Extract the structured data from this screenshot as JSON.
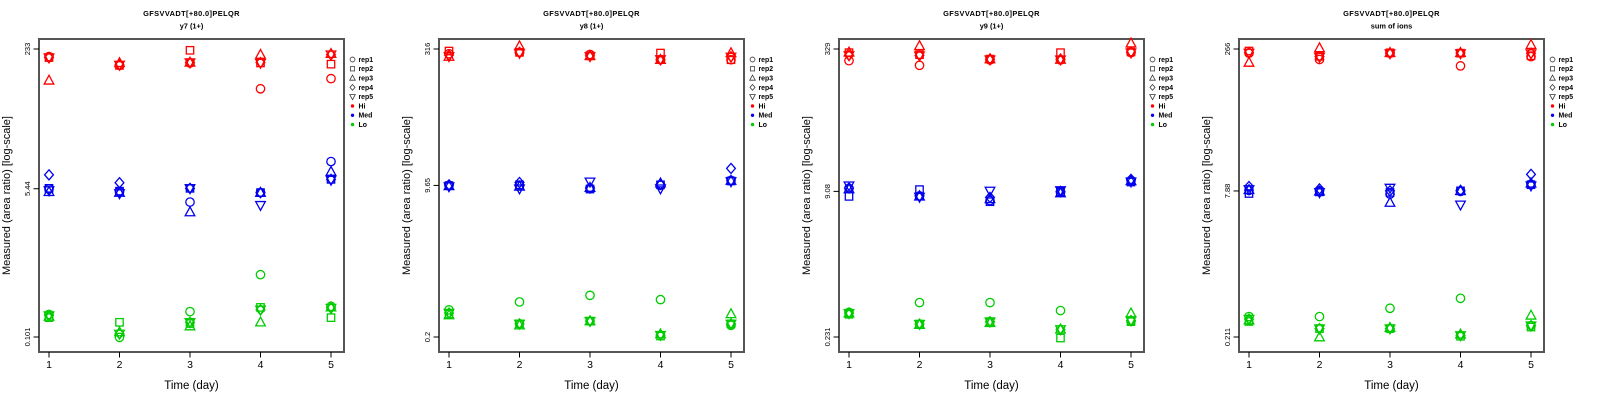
{
  "figure": {
    "ylabel": "Measured (area ratio) [log-scale]",
    "xlabel": "Time (day)",
    "title": "GFSVVADT[+80.0]PELQR"
  },
  "colors": {
    "hi": "#FF0000",
    "med": "#0000EE",
    "lo": "#00CC00",
    "frame": "#555555",
    "legend_symbol": "#333333",
    "text": "#000000"
  },
  "legend": {
    "reps": [
      {
        "label": "rep1",
        "marker": "circle"
      },
      {
        "label": "rep2",
        "marker": "square"
      },
      {
        "label": "rep3",
        "marker": "triangle-up"
      },
      {
        "label": "rep4",
        "marker": "diamond"
      },
      {
        "label": "rep5",
        "marker": "triangle-down"
      }
    ],
    "groups": [
      {
        "label": "Hi",
        "color": "#FF0000"
      },
      {
        "label": "Med",
        "color": "#0000EE"
      },
      {
        "label": "Lo",
        "color": "#00CC00"
      }
    ]
  },
  "chart_data": [
    {
      "type": "scatter",
      "title": "GFSVVADT[+80.0]PELQR",
      "subtitle": "y7 (1+)",
      "xlabel": "Time (day)",
      "ylabel": "Measured (area ratio) [log-scale]",
      "x_ticks": [
        1,
        2,
        3,
        4,
        5
      ],
      "x_tick_labels": [
        "1",
        "2",
        "3",
        "4",
        "5"
      ],
      "y_scale": "log",
      "y_tick_values": [
        233,
        5.44,
        0.101
      ],
      "y_tick_labels": [
        "233",
        "5.44",
        "0.101"
      ],
      "xlim": [
        0.5,
        5.5
      ],
      "ylim": [
        0.068,
        305
      ],
      "grid": false,
      "legend_position": "right-outside",
      "series": [
        {
          "group": "Hi",
          "rep": "rep1",
          "marker": "circle",
          "color": "#FF0000",
          "values": [
            190,
            150,
            160,
            80,
            105
          ]
        },
        {
          "group": "Hi",
          "rep": "rep2",
          "marker": "square",
          "color": "#FF0000",
          "values": [
            185,
            150,
            225,
            160,
            155
          ]
        },
        {
          "group": "Hi",
          "rep": "rep3",
          "marker": "triangle-up",
          "color": "#FF0000",
          "values": [
            100,
            160,
            162,
            200,
            205
          ]
        },
        {
          "group": "Hi",
          "rep": "rep4",
          "marker": "diamond",
          "color": "#FF0000",
          "values": [
            185,
            152,
            162,
            162,
            200
          ]
        },
        {
          "group": "Hi",
          "rep": "rep5",
          "marker": "triangle-down",
          "color": "#FF0000",
          "values": [
            185,
            152,
            162,
            160,
            200
          ]
        },
        {
          "group": "Med",
          "rep": "rep1",
          "marker": "circle",
          "color": "#0000EE",
          "values": [
            5.4,
            5.0,
            3.8,
            4.9,
            11.3
          ]
        },
        {
          "group": "Med",
          "rep": "rep2",
          "marker": "square",
          "color": "#0000EE",
          "values": [
            5.5,
            5.1,
            5.5,
            4.9,
            7.0
          ]
        },
        {
          "group": "Med",
          "rep": "rep3",
          "marker": "triangle-up",
          "color": "#0000EE",
          "values": [
            5.0,
            4.9,
            2.9,
            4.9,
            8.6
          ]
        },
        {
          "group": "Med",
          "rep": "rep4",
          "marker": "diamond",
          "color": "#0000EE",
          "values": [
            7.9,
            6.4,
            5.5,
            4.9,
            7.0
          ]
        },
        {
          "group": "Med",
          "rep": "rep5",
          "marker": "triangle-down",
          "color": "#0000EE",
          "values": [
            5.2,
            4.8,
            5.5,
            3.5,
            6.9
          ]
        },
        {
          "group": "Lo",
          "rep": "rep1",
          "marker": "circle",
          "color": "#00CC00",
          "values": [
            0.185,
            0.1,
            0.2,
            0.54,
            0.23
          ]
        },
        {
          "group": "Lo",
          "rep": "rep2",
          "marker": "square",
          "color": "#00CC00",
          "values": [
            0.17,
            0.15,
            0.145,
            0.224,
            0.17
          ]
        },
        {
          "group": "Lo",
          "rep": "rep3",
          "marker": "triangle-up",
          "color": "#00CC00",
          "values": [
            0.175,
            0.115,
            0.135,
            0.15,
            0.225
          ]
        },
        {
          "group": "Lo",
          "rep": "rep4",
          "marker": "diamond",
          "color": "#00CC00",
          "values": [
            0.18,
            0.11,
            0.15,
            0.21,
            0.22
          ]
        },
        {
          "group": "Lo",
          "rep": "rep5",
          "marker": "triangle-down",
          "color": "#00CC00",
          "values": [
            0.18,
            0.11,
            0.15,
            0.21,
            0.22
          ]
        }
      ]
    },
    {
      "type": "scatter",
      "title": "GFSVVADT[+80.0]PELQR",
      "subtitle": "y8 (1+)",
      "xlabel": "Time (day)",
      "ylabel": "Measured (area ratio) [log-scale]",
      "x_ticks": [
        1,
        2,
        3,
        4,
        5
      ],
      "x_tick_labels": [
        "1",
        "2",
        "3",
        "4",
        "5"
      ],
      "y_scale": "log",
      "y_tick_values": [
        316,
        9.65,
        0.2
      ],
      "y_tick_labels": [
        "316",
        "9.65",
        "0.2"
      ],
      "xlim": [
        0.5,
        5.5
      ],
      "ylim": [
        0.14,
        408
      ],
      "grid": false,
      "legend_position": "right-outside",
      "series": [
        {
          "group": "Hi",
          "rep": "rep1",
          "marker": "circle",
          "color": "#FF0000",
          "values": [
            280,
            290,
            275,
            240,
            240
          ]
        },
        {
          "group": "Hi",
          "rep": "rep2",
          "marker": "square",
          "color": "#FF0000",
          "values": [
            300,
            290,
            265,
            285,
            240
          ]
        },
        {
          "group": "Hi",
          "rep": "rep3",
          "marker": "triangle-up",
          "color": "#FF0000",
          "values": [
            260,
            340,
            265,
            240,
            285
          ]
        },
        {
          "group": "Hi",
          "rep": "rep4",
          "marker": "diamond",
          "color": "#FF0000",
          "values": [
            270,
            290,
            265,
            240,
            260
          ]
        },
        {
          "group": "Hi",
          "rep": "rep5",
          "marker": "triangle-down",
          "color": "#FF0000",
          "values": [
            262,
            285,
            262,
            242,
            258
          ]
        },
        {
          "group": "Med",
          "rep": "rep1",
          "marker": "circle",
          "color": "#0000EE",
          "values": [
            9.7,
            9.6,
            9.0,
            9.7,
            11.0
          ]
        },
        {
          "group": "Med",
          "rep": "rep2",
          "marker": "square",
          "color": "#0000EE",
          "values": [
            9.6,
            9.8,
            8.8,
            9.8,
            10.8
          ]
        },
        {
          "group": "Med",
          "rep": "rep3",
          "marker": "triangle-up",
          "color": "#0000EE",
          "values": [
            9.5,
            9.4,
            9.1,
            10.2,
            10.9
          ]
        },
        {
          "group": "Med",
          "rep": "rep4",
          "marker": "diamond",
          "color": "#0000EE",
          "values": [
            9.8,
            10.4,
            9.0,
            9.9,
            14.9
          ]
        },
        {
          "group": "Med",
          "rep": "rep5",
          "marker": "triangle-down",
          "color": "#0000EE",
          "values": [
            9.4,
            8.9,
            10.6,
            8.9,
            10.7
          ]
        },
        {
          "group": "Lo",
          "rep": "rep1",
          "marker": "circle",
          "color": "#00CC00",
          "values": [
            0.4,
            0.49,
            0.58,
            0.52,
            0.27
          ]
        },
        {
          "group": "Lo",
          "rep": "rep2",
          "marker": "square",
          "color": "#00CC00",
          "values": [
            0.36,
            0.28,
            0.3,
            0.205,
            0.28
          ]
        },
        {
          "group": "Lo",
          "rep": "rep3",
          "marker": "triangle-up",
          "color": "#00CC00",
          "values": [
            0.35,
            0.27,
            0.3,
            0.215,
            0.36
          ]
        },
        {
          "group": "Lo",
          "rep": "rep4",
          "marker": "diamond",
          "color": "#00CC00",
          "values": [
            0.37,
            0.28,
            0.3,
            0.21,
            0.28
          ]
        },
        {
          "group": "Lo",
          "rep": "rep5",
          "marker": "triangle-down",
          "color": "#00CC00",
          "values": [
            0.37,
            0.28,
            0.3,
            0.21,
            0.28
          ]
        }
      ]
    },
    {
      "type": "scatter",
      "title": "GFSVVADT[+80.0]PELQR",
      "subtitle": "y9 (1+)",
      "xlabel": "Time (day)",
      "ylabel": "Measured (area ratio) [log-scale]",
      "x_ticks": [
        1,
        2,
        3,
        4,
        5
      ],
      "x_tick_labels": [
        "1",
        "2",
        "3",
        "4",
        "5"
      ],
      "y_scale": "log",
      "y_tick_values": [
        329,
        9.08,
        0.231
      ],
      "y_tick_labels": [
        "329",
        "9.08",
        "0.231"
      ],
      "xlim": [
        0.5,
        5.5
      ],
      "ylim": [
        0.16,
        423
      ],
      "grid": false,
      "legend_position": "right-outside",
      "series": [
        {
          "group": "Hi",
          "rep": "rep1",
          "marker": "circle",
          "color": "#FF0000",
          "values": [
            245,
            218,
            250,
            250,
            300
          ]
        },
        {
          "group": "Hi",
          "rep": "rep2",
          "marker": "square",
          "color": "#FF0000",
          "values": [
            300,
            285,
            255,
            300,
            305
          ]
        },
        {
          "group": "Hi",
          "rep": "rep3",
          "marker": "triangle-up",
          "color": "#FF0000",
          "values": [
            302,
            355,
            255,
            252,
            380
          ]
        },
        {
          "group": "Hi",
          "rep": "rep4",
          "marker": "diamond",
          "color": "#FF0000",
          "values": [
            280,
            280,
            255,
            255,
            305
          ]
        },
        {
          "group": "Hi",
          "rep": "rep5",
          "marker": "triangle-down",
          "color": "#FF0000",
          "values": [
            280,
            278,
            252,
            252,
            300
          ]
        },
        {
          "group": "Med",
          "rep": "rep1",
          "marker": "circle",
          "color": "#0000EE",
          "values": [
            9.8,
            8.1,
            7.2,
            8.8,
            12.0
          ]
        },
        {
          "group": "Med",
          "rep": "rep2",
          "marker": "square",
          "color": "#0000EE",
          "values": [
            8.0,
            9.5,
            7.0,
            9.0,
            11.5
          ]
        },
        {
          "group": "Med",
          "rep": "rep3",
          "marker": "triangle-up",
          "color": "#0000EE",
          "values": [
            9.6,
            8.0,
            7.5,
            8.7,
            11.8
          ]
        },
        {
          "group": "Med",
          "rep": "rep4",
          "marker": "diamond",
          "color": "#0000EE",
          "values": [
            9.9,
            8.1,
            7.8,
            9.1,
            12.3
          ]
        },
        {
          "group": "Med",
          "rep": "rep5",
          "marker": "triangle-down",
          "color": "#0000EE",
          "values": [
            10.5,
            7.9,
            9.2,
            9.3,
            11.6
          ]
        },
        {
          "group": "Lo",
          "rep": "rep1",
          "marker": "circle",
          "color": "#00CC00",
          "values": [
            0.43,
            0.55,
            0.55,
            0.45,
            0.345
          ]
        },
        {
          "group": "Lo",
          "rep": "rep2",
          "marker": "square",
          "color": "#00CC00",
          "values": [
            0.41,
            0.32,
            0.34,
            0.225,
            0.34
          ]
        },
        {
          "group": "Lo",
          "rep": "rep3",
          "marker": "triangle-up",
          "color": "#00CC00",
          "values": [
            0.42,
            0.315,
            0.33,
            0.28,
            0.42
          ]
        },
        {
          "group": "Lo",
          "rep": "rep4",
          "marker": "diamond",
          "color": "#00CC00",
          "values": [
            0.42,
            0.32,
            0.34,
            0.28,
            0.35
          ]
        },
        {
          "group": "Lo",
          "rep": "rep5",
          "marker": "triangle-down",
          "color": "#00CC00",
          "values": [
            0.42,
            0.32,
            0.34,
            0.28,
            0.35
          ]
        }
      ]
    },
    {
      "type": "scatter",
      "title": "GFSVVADT[+80.0]PELQR",
      "subtitle": "sum of ions",
      "xlabel": "Time (day)",
      "ylabel": "Measured (area ratio) [log-scale]",
      "x_ticks": [
        1,
        2,
        3,
        4,
        5
      ],
      "x_tick_labels": [
        "1",
        "2",
        "3",
        "4",
        "5"
      ],
      "y_scale": "log",
      "y_tick_values": [
        266,
        7.88,
        0.211
      ],
      "y_tick_labels": [
        "266",
        "7.88",
        "0.211"
      ],
      "xlim": [
        0.5,
        5.5
      ],
      "ylim": [
        0.15,
        341
      ],
      "grid": false,
      "legend_position": "right-outside",
      "series": [
        {
          "group": "Hi",
          "rep": "rep1",
          "marker": "circle",
          "color": "#FF0000",
          "values": [
            240,
            205,
            240,
            175,
            220
          ]
        },
        {
          "group": "Hi",
          "rep": "rep2",
          "marker": "square",
          "color": "#FF0000",
          "values": [
            253,
            222,
            242,
            240,
            225
          ]
        },
        {
          "group": "Hi",
          "rep": "rep3",
          "marker": "triangle-up",
          "color": "#FF0000",
          "values": [
            190,
            272,
            242,
            242,
            295
          ]
        },
        {
          "group": "Hi",
          "rep": "rep4",
          "marker": "diamond",
          "color": "#FF0000",
          "values": [
            245,
            220,
            240,
            240,
            240
          ]
        },
        {
          "group": "Hi",
          "rep": "rep5",
          "marker": "triangle-down",
          "color": "#FF0000",
          "values": [
            242,
            218,
            238,
            238,
            238
          ]
        },
        {
          "group": "Med",
          "rep": "rep1",
          "marker": "circle",
          "color": "#0000EE",
          "values": [
            8.0,
            7.9,
            7.3,
            7.8,
            9.3
          ]
        },
        {
          "group": "Med",
          "rep": "rep2",
          "marker": "square",
          "color": "#0000EE",
          "values": [
            7.4,
            7.7,
            7.6,
            7.9,
            9.2
          ]
        },
        {
          "group": "Med",
          "rep": "rep3",
          "marker": "triangle-up",
          "color": "#0000EE",
          "values": [
            8.1,
            7.8,
            5.9,
            7.9,
            9.5
          ]
        },
        {
          "group": "Med",
          "rep": "rep4",
          "marker": "diamond",
          "color": "#0000EE",
          "values": [
            8.8,
            8.3,
            7.9,
            8.0,
            11.9
          ]
        },
        {
          "group": "Med",
          "rep": "rep5",
          "marker": "triangle-down",
          "color": "#0000EE",
          "values": [
            8.2,
            7.6,
            8.5,
            5.6,
            9.0
          ]
        },
        {
          "group": "Lo",
          "rep": "rep1",
          "marker": "circle",
          "color": "#00CC00",
          "values": [
            0.35,
            0.35,
            0.43,
            0.55,
            0.28
          ]
        },
        {
          "group": "Lo",
          "rep": "rep2",
          "marker": "square",
          "color": "#00CC00",
          "values": [
            0.31,
            0.26,
            0.26,
            0.215,
            0.27
          ]
        },
        {
          "group": "Lo",
          "rep": "rep3",
          "marker": "triangle-up",
          "color": "#00CC00",
          "values": [
            0.32,
            0.21,
            0.265,
            0.225,
            0.36
          ]
        },
        {
          "group": "Lo",
          "rep": "rep4",
          "marker": "diamond",
          "color": "#00CC00",
          "values": [
            0.33,
            0.26,
            0.26,
            0.22,
            0.28
          ]
        },
        {
          "group": "Lo",
          "rep": "rep5",
          "marker": "triangle-down",
          "color": "#00CC00",
          "values": [
            0.33,
            0.26,
            0.26,
            0.22,
            0.28
          ]
        }
      ]
    }
  ]
}
